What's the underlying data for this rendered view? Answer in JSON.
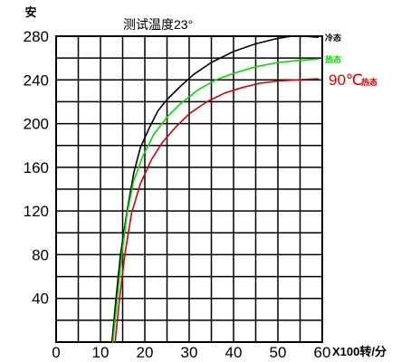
{
  "chart_data": {
    "type": "line",
    "title": "测试温度23°",
    "ylabel": "安",
    "xlabel": "X100转/分",
    "xlim": [
      0,
      60
    ],
    "ylim": [
      0,
      280
    ],
    "grid": true,
    "x_ticks": [
      0,
      10,
      20,
      30,
      40,
      50,
      60
    ],
    "x_tick_labels": [
      "0",
      "10",
      "20",
      "30",
      "40",
      "50",
      "60"
    ],
    "y_ticks": [
      40,
      80,
      120,
      160,
      200,
      240,
      280
    ],
    "y_tick_labels": [
      "40",
      "80",
      "120",
      "160",
      "200",
      "240",
      "280"
    ],
    "series": [
      {
        "name": "冷态",
        "color": "#000000",
        "x": [
          12.6,
          13.5,
          14.5,
          16,
          17.5,
          19,
          21,
          23,
          25,
          28,
          31,
          35,
          40,
          45,
          50,
          53,
          56,
          59
        ],
        "y": [
          0,
          40,
          80,
          120,
          155,
          178,
          196,
          212,
          222,
          234,
          245,
          256,
          266,
          273,
          278,
          280,
          280,
          279
        ]
      },
      {
        "name": "热态",
        "color": "#00dd00",
        "x": [
          12.8,
          13.8,
          14.8,
          16,
          17.5,
          19.5,
          22,
          25,
          28,
          32,
          36,
          40,
          45,
          50,
          55,
          59
        ],
        "y": [
          0,
          40,
          80,
          118,
          148,
          170,
          190,
          206,
          218,
          231,
          240,
          246,
          252,
          256,
          258,
          259
        ]
      },
      {
        "name": "90℃ 热态",
        "color": "#dd0000",
        "x": [
          13.3,
          14.3,
          15.5,
          17,
          19,
          21.5,
          24,
          27,
          30,
          34,
          38,
          42,
          46,
          50,
          54,
          59
        ],
        "y": [
          0,
          40,
          80,
          118,
          145,
          167,
          183,
          197,
          209,
          220,
          228,
          233,
          237,
          239,
          240,
          241
        ]
      }
    ],
    "annotations": [
      {
        "text": "冷态",
        "series": 0,
        "color": "#000000"
      },
      {
        "text": "热态",
        "series": 1,
        "color": "#00dd00"
      },
      {
        "text": "90℃",
        "series": 2,
        "color": "#dd0000"
      },
      {
        "text": "热态",
        "series": 2,
        "color": "#dd0000"
      }
    ]
  }
}
